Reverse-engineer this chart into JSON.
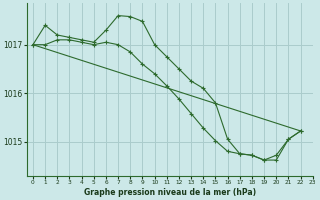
{
  "title": "Graphe pression niveau de la mer (hPa)",
  "background_color": "#cce8e8",
  "plot_bg_color": "#cce8e8",
  "line_color": "#2d6a2d",
  "grid_color": "#aacccc",
  "axis_color": "#2d6a2d",
  "text_color": "#1a3a1a",
  "ylim": [
    1014.3,
    1017.85
  ],
  "yticks": [
    1015,
    1016,
    1017
  ],
  "xlim": [
    -0.5,
    23
  ],
  "xticks": [
    0,
    1,
    2,
    3,
    4,
    5,
    6,
    7,
    8,
    9,
    10,
    11,
    12,
    13,
    14,
    15,
    16,
    17,
    18,
    19,
    20,
    21,
    22,
    23
  ],
  "series1_x": [
    0,
    1,
    2,
    3,
    4,
    5,
    6,
    7,
    8,
    9,
    10,
    11,
    12,
    13,
    14,
    15,
    16,
    17,
    18,
    19,
    20,
    21,
    22
  ],
  "series1_y": [
    1017.0,
    1017.4,
    1017.2,
    1017.15,
    1017.1,
    1017.05,
    1017.3,
    1017.6,
    1017.58,
    1017.48,
    1017.0,
    1016.75,
    1016.5,
    1016.25,
    1016.1,
    1015.8,
    1015.05,
    1014.75,
    1014.72,
    1014.62,
    1014.72,
    1015.05,
    1015.22
  ],
  "series2_x": [
    0,
    1,
    2,
    3,
    4,
    5,
    6,
    7,
    8,
    9,
    10,
    11,
    12,
    13,
    14,
    15,
    16,
    17,
    18,
    19,
    20,
    21,
    22
  ],
  "series2_y": [
    1017.0,
    1017.0,
    1017.1,
    1017.1,
    1017.05,
    1017.0,
    1017.05,
    1017.0,
    1016.85,
    1016.6,
    1016.4,
    1016.15,
    1015.88,
    1015.58,
    1015.28,
    1015.02,
    1014.8,
    1014.75,
    1014.72,
    1014.62,
    1014.62,
    1015.05,
    1015.22
  ],
  "series3_x": [
    0,
    22
  ],
  "series3_y": [
    1017.0,
    1015.22
  ]
}
